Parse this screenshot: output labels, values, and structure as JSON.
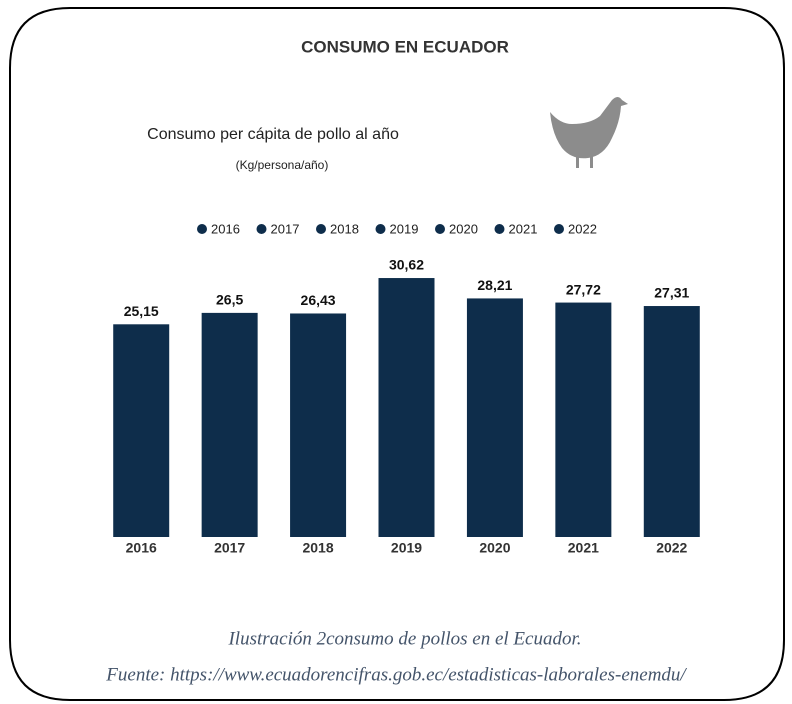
{
  "chart_data": {
    "type": "bar",
    "title": "CONSUMO EN ECUADOR",
    "subtitle": "Consumo per cápita de pollo al año",
    "unit_label": "(Kg/persona/año)",
    "categories": [
      "2016",
      "2017",
      "2018",
      "2019",
      "2020",
      "2021",
      "2022"
    ],
    "values": [
      25.15,
      26.5,
      26.43,
      30.62,
      28.21,
      27.72,
      27.31
    ],
    "value_labels": [
      "25,15",
      "26,5",
      "26,43",
      "30,62",
      "28,21",
      "27,72",
      "27,31"
    ],
    "color": "#0e2d4b",
    "ylim": [
      0,
      35
    ]
  },
  "caption": "Ilustración 2consumo de pollos en el Ecuador.",
  "source": "Fuente: https://www.ecuadorencifras.gob.ec/estadisticas-laborales-enemdu/"
}
